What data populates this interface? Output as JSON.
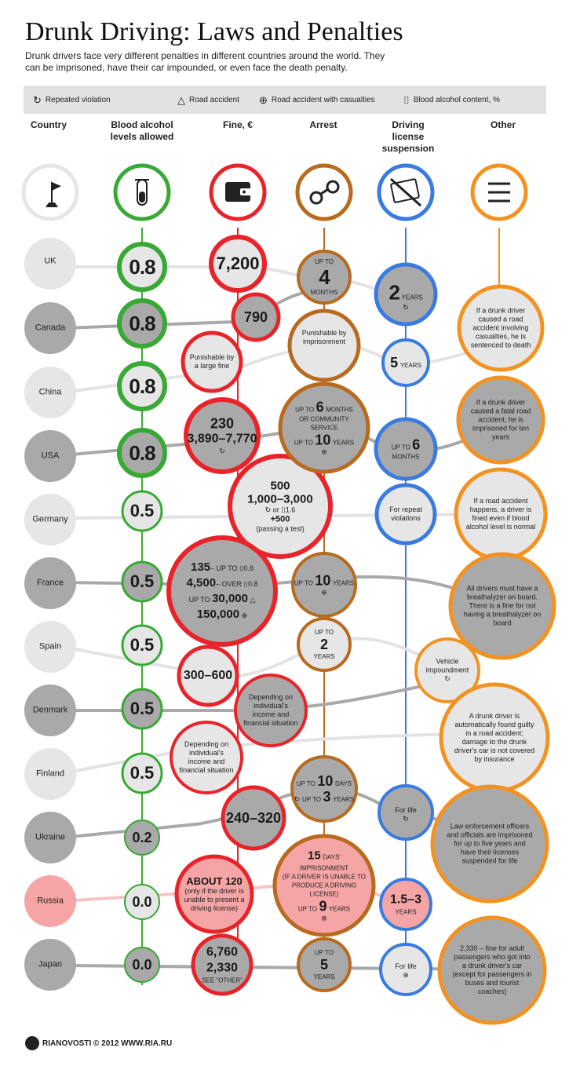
{
  "title": "Drunk Driving: Laws and Penalties",
  "subtitle": "Drunk drivers face very different penalties in different countries around the world. They can be imprisoned, have their car impounded, or even face the death penalty.",
  "legend": {
    "repeated": "Repeated violation",
    "accident": "Road accident",
    "casualties": "Road accident with casualties",
    "bac": "Blood alcohol content, %"
  },
  "headers": {
    "country": "Country",
    "bac": "Blood alcohol levels allowed",
    "fine": "Fine, €",
    "arrest": "Arrest",
    "license": "Driving license suspension",
    "other": "Other"
  },
  "colors": {
    "green": "#39a935",
    "red": "#e8242a",
    "brown": "#b86a1e",
    "blue": "#3a7be0",
    "orange": "#f39220",
    "gray_dark": "#a9a9a9",
    "gray_light": "#e6e6e6",
    "pink": "#f5a5a5"
  },
  "footer": "RIANOVOSTI © 2012 WWW.RIA.RU",
  "countries": [
    "UK",
    "Canada",
    "China",
    "USA",
    "Germany",
    "France",
    "Spain",
    "Denmark",
    "Finland",
    "Ukraine",
    "Russia",
    "Japan"
  ],
  "bac": [
    "0.8",
    "0.8",
    "0.8",
    "0.8",
    "0.5",
    "0.5",
    "0.5",
    "0.5",
    "0.5",
    "0.2",
    "0.0",
    "0.0"
  ],
  "fine": {
    "uk": "7,200",
    "canada": "790",
    "china": "Punishable by a large fine",
    "usa_1": "230",
    "usa_2": "3,890–7,770",
    "germany_1": "500",
    "germany_2": "1,000–3,000",
    "germany_3": "or",
    "germany_4": "1.6",
    "germany_5": "+500",
    "germany_6": "(passing a test)",
    "france_1": "135",
    "france_1b": "– UP TO",
    "france_1c": "0.8",
    "france_2": "4,500",
    "france_2b": "– OVER",
    "france_2c": "0.8",
    "france_3a": "UP TO",
    "france_3": "30,000",
    "france_4": "150,000",
    "spain": "300–600",
    "denmark": "Depending on individual's income and financial situation",
    "finland": "Depending on individual's income and financial situation",
    "ukraine": "240–320",
    "russia_1": "ABOUT 120",
    "russia_2": "(only if the driver is unable to present a driving license)",
    "japan_1": "6,760",
    "japan_2": "2,330",
    "japan_3": "SEE “OTHER”"
  },
  "arrest": {
    "uk_1": "UP TO",
    "uk_2": "4",
    "uk_3": "MONTHS",
    "canada": "Punishable by imprisonment",
    "usa_1": "UP TO",
    "usa_2": "6",
    "usa_3": "MONTHS",
    "usa_4": "OR COMMUNITY SERVICE",
    "usa_5": "UP TO",
    "usa_6": "10",
    "usa_7": "YEARS",
    "france_1": "UP TO",
    "france_2": "10",
    "france_3": "YEARS",
    "spain_1": "UP TO",
    "spain_2": "2",
    "spain_3": "YEARS",
    "finland_1": "UP TO",
    "finland_2": "10",
    "finland_3": "DAYS",
    "finland_4": "UP TO",
    "finland_5": "3",
    "finland_6": "YEARS",
    "russia_1": "15",
    "russia_2": "DAYS'",
    "russia_3": "IMPRISONMENT",
    "russia_4": "(IF A DRIVER IS UNABLE TO PRODUCE A DRIVING LICENSE)",
    "russia_5": "UP TO",
    "russia_6": "9",
    "russia_7": "YEARS",
    "japan_1": "UP TO",
    "japan_2": "5",
    "japan_3": "YEARS"
  },
  "license": {
    "uk_1": "2",
    "uk_2": "YEARS",
    "canada_1": "5",
    "canada_2": "YEARS",
    "usa_1": "UP TO",
    "usa_2": "6",
    "usa_3": "MONTHS",
    "germany": "For repeat violations",
    "ukraine": "For life",
    "russia_1": "1.5–3",
    "russia_2": "YEARS",
    "japan": "For life"
  },
  "other": {
    "canada": "If a drunk driver caused a road accident involving casualties, he is sentenced to death",
    "usa": "If a drunk driver caused a fatal road accident, he is imprisoned for ten years",
    "germany": "If a road accident happens, a driver is fined even if blood alcohol level is normal",
    "france": "All drivers must have a breathalyzer on board. There is a fine for not having a breathalyzer on board",
    "spain": "Vehicle impoundment",
    "denmark": "A drunk driver is automatically found guilty in a road accident; damage to the drunk driver's car is not covered by insurance",
    "ukraine": "Law enforcement officers and officials are imprisoned for up to five years and have their licenses suspended for life",
    "japan": "2,330 – fine for adult passengers who got into a drunk driver's car (except for passengers in buses and tourist coaches)"
  }
}
